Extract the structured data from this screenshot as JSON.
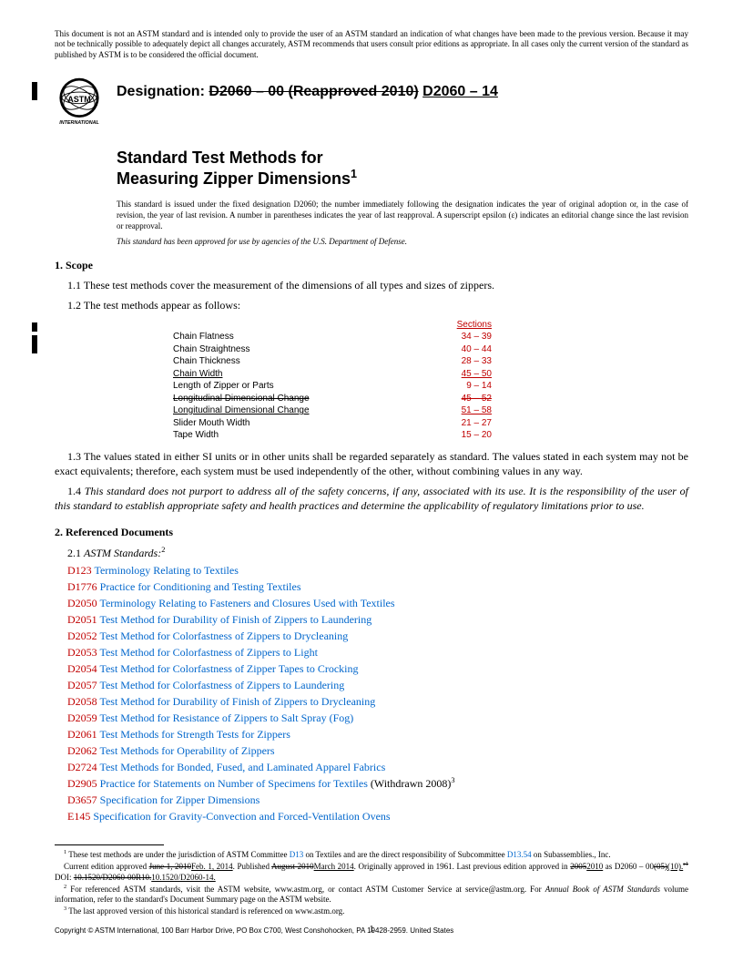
{
  "disclaimer": "This document is not an ASTM standard and is intended only to provide the user of an ASTM standard an indication of what changes have been made to the previous version. Because it may not be technically possible to adequately depict all changes accurately, ASTM recommends that users consult prior editions as appropriate. In all cases only the current version of the standard as published by ASTM is to be considered the official document.",
  "designation_label": "Designation:",
  "designation_old": "D2060 – 00 (Reapproved 2010)",
  "designation_new": "D2060 – 14",
  "title_line1": "Standard Test Methods for",
  "title_line2": "Measuring Zipper Dimensions",
  "title_sup": "1",
  "issuance": "This standard is issued under the fixed designation D2060; the number immediately following the designation indicates the year of original adoption or, in the case of revision, the year of last revision. A number in parentheses indicates the year of last reapproval. A superscript epsilon (ε) indicates an editorial change since the last revision or reapproval.",
  "dod": "This standard has been approved for use by agencies of the U.S. Department of Defense.",
  "scope": {
    "head": "1. Scope",
    "p11": "1.1 These test methods cover the measurement of the dimensions of all types and sizes of zippers.",
    "p12": "1.2 The test methods appear as follows:",
    "p13": "1.3 The values stated in either SI units or in other units shall be regarded separately as standard. The values stated in each system may not be exact equivalents; therefore, each system must be used independently of the other, without combining values in any way.",
    "p14_lead": "1.4 ",
    "p14": "This standard does not purport to address all of the safety concerns, if any, associated with its use. It is the responsibility of the user of this standard to establish appropriate safety and health practices and determine the applicability of regulatory limitations prior to use."
  },
  "methods": {
    "header": "Sections",
    "rows": [
      {
        "label": "Chain Flatness",
        "sect": "34 – 39",
        "style": "red"
      },
      {
        "label": "Chain Straightness",
        "sect": "40 – 44",
        "style": "red"
      },
      {
        "label": "Chain Thickness",
        "sect": "28 – 33",
        "style": "red"
      },
      {
        "label": "Chain Width",
        "label_style": "under",
        "sect": "45 – 50",
        "style": "under-red"
      },
      {
        "label": "Length of Zipper or Parts",
        "sect": "9 – 14",
        "style": "red"
      },
      {
        "label": "Longitudinal Dimensional Change",
        "label_style": "strike",
        "sect": "45 – 52",
        "style": "strike-red"
      },
      {
        "label": "Longitudinal Dimensional Change",
        "label_style": "under",
        "sect": "51 – 58",
        "style": "under-red"
      },
      {
        "label": "Slider Mouth Width",
        "sect": "21 – 27",
        "style": "red"
      },
      {
        "label": "Tape Width",
        "sect": "15 – 20",
        "style": "red"
      }
    ]
  },
  "refs": {
    "head": "2. Referenced Documents",
    "sub": "2.1 ",
    "sub_italic": "ASTM Standards:",
    "sub_sup": "2",
    "items": [
      {
        "id": "D123",
        "title": "Terminology Relating to Textiles"
      },
      {
        "id": "D1776",
        "title": "Practice for Conditioning and Testing Textiles"
      },
      {
        "id": "D2050",
        "title": "Terminology Relating to Fasteners and Closures Used with Textiles"
      },
      {
        "id": "D2051",
        "title": "Test Method for Durability of Finish of Zippers to Laundering"
      },
      {
        "id": "D2052",
        "title": "Test Method for Colorfastness of Zippers to Drycleaning"
      },
      {
        "id": "D2053",
        "title": "Test Method for Colorfastness of Zippers to Light"
      },
      {
        "id": "D2054",
        "title": "Test Method for Colorfastness of Zipper Tapes to Crocking"
      },
      {
        "id": "D2057",
        "title": "Test Method for Colorfastness of Zippers to Laundering"
      },
      {
        "id": "D2058",
        "title": "Test Method for Durability of Finish of Zippers to Drycleaning"
      },
      {
        "id": "D2059",
        "title": "Test Method for Resistance of Zippers to Salt Spray (Fog)"
      },
      {
        "id": "D2061",
        "title": "Test Methods for Strength Tests for Zippers"
      },
      {
        "id": "D2062",
        "title": "Test Methods for Operability of Zippers"
      },
      {
        "id": "D2724",
        "title": "Test Methods for Bonded, Fused, and Laminated Apparel Fabrics"
      },
      {
        "id": "D2905",
        "title": "Practice for Statements on Number of Specimens for Textiles",
        "note": " (Withdrawn 2008)",
        "sup": "3"
      },
      {
        "id": "D3657",
        "title": "Specification for Zipper Dimensions"
      },
      {
        "id": "E145",
        "title": "Specification for Gravity-Convection and Forced-Ventilation Ovens"
      }
    ]
  },
  "footnotes": {
    "f1a": " These test methods are under the jurisdiction of ASTM Committee ",
    "f1_link1": "D13",
    "f1b": " on Textiles and are the direct responsibility of Subcommittee ",
    "f1_link2": "D13.54",
    "f1c": " on Subassemblies., Inc.",
    "f1d_pre": "Current edition approved ",
    "f1d_strike1": "June 1, 2010",
    "f1d_new1": "Feb. 1, 2014",
    "f1d_mid": ". Published ",
    "f1d_strike2": "August 2010",
    "f1d_new2": "March 2014",
    "f1d_mid2": ". Originally approved in 1961. Last previous edition approved in ",
    "f1d_strike3": "2005",
    "f1d_new3": "2010",
    "f1d_mid3": " as D2060 – 00",
    "f1d_strike4": "(05)",
    "f1d_new4": "(10).",
    "f1d_strike5": "ε1",
    "f1d_mid4": " DOI: ",
    "f1d_strike6": "10.1520/D2060-00R10.",
    "f1d_new5": "10.1520/D2060-14.",
    "f2": " For referenced ASTM standards, visit the ASTM website, www.astm.org, or contact ASTM Customer Service at service@astm.org. For ",
    "f2_italic": "Annual Book of ASTM Standards",
    "f2b": " volume information, refer to the standard's Document Summary page on the ASTM website.",
    "f3": " The last approved version of this historical standard is referenced on www.astm.org."
  },
  "copyright": "Copyright © ASTM International, 100 Barr Harbor Drive, PO Box C700, West Conshohocken, PA 19428-2959. United States",
  "page_no": "1",
  "colors": {
    "red": "#c00000",
    "link": "#0066cc"
  }
}
